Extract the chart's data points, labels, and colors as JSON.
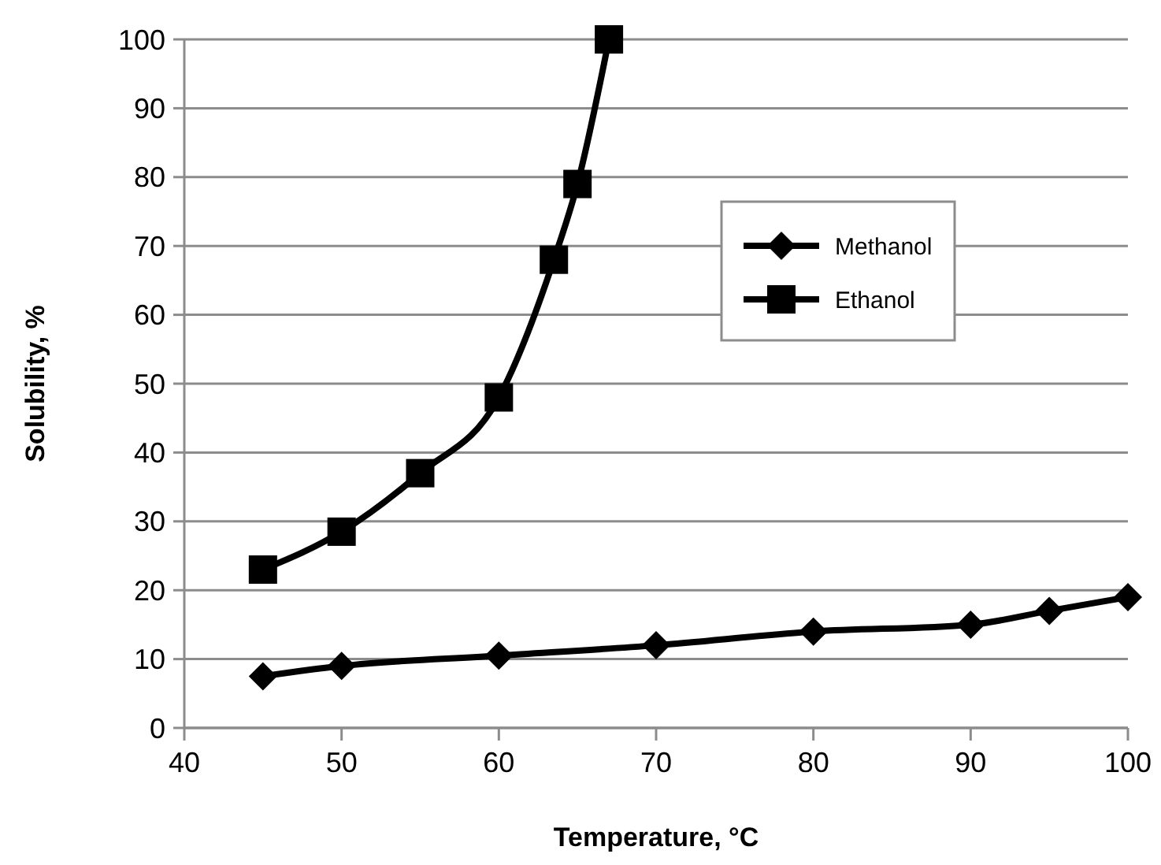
{
  "chart_data": {
    "type": "line",
    "xlabel": "Temperature, °C",
    "ylabel": "Solubility, %",
    "xlim": [
      40,
      100
    ],
    "xticks": [
      40,
      50,
      60,
      70,
      80,
      90,
      100
    ],
    "ylim": [
      0,
      100
    ],
    "yticks": [
      0,
      10,
      20,
      30,
      40,
      50,
      60,
      70,
      80,
      90,
      100
    ],
    "grid": "y",
    "legend": "right",
    "series": [
      {
        "name": "Methanol",
        "color": "#000000",
        "marker": "diamond",
        "x": [
          45,
          50,
          60,
          70,
          80,
          90,
          95,
          100
        ],
        "values": [
          7.5,
          9,
          10.5,
          12,
          14,
          15,
          17,
          19
        ]
      },
      {
        "name": "Ethanol",
        "color": "#000000",
        "marker": "square",
        "x": [
          45,
          50,
          55,
          60,
          63.5,
          65,
          67
        ],
        "values": [
          23,
          28.5,
          37,
          48,
          68,
          79,
          100
        ]
      }
    ]
  }
}
